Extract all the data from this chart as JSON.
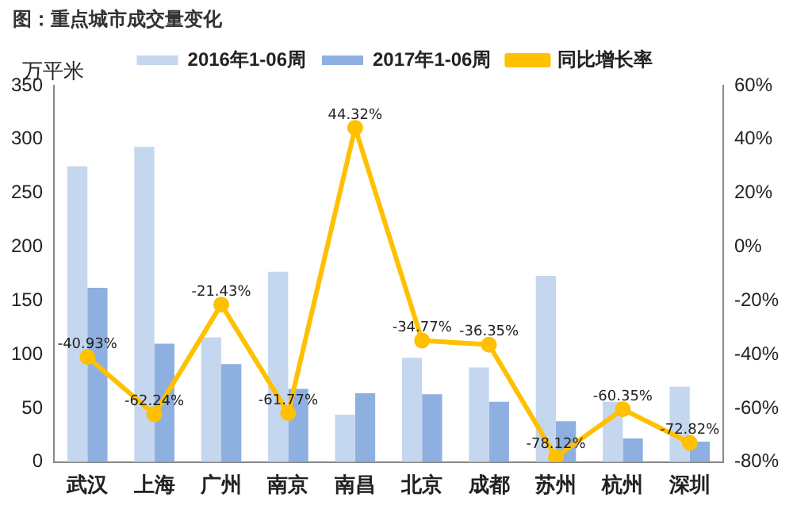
{
  "chart_data": {
    "type": "bar",
    "title": "图：重点城市成交量变化",
    "ylabel": "万平米",
    "categories": [
      "武汉",
      "上海",
      "广州",
      "南京",
      "南昌",
      "北京",
      "成都",
      "苏州",
      "杭州",
      "深圳"
    ],
    "series": [
      {
        "name": "2016年1-06周",
        "color": "#c5d6ef",
        "values": [
          275,
          293,
          116,
          177,
          44,
          97,
          88,
          173,
          56,
          70
        ]
      },
      {
        "name": "2017年1-06周",
        "color": "#8eb0e0",
        "values": [
          162,
          110,
          91,
          68,
          64,
          63,
          56,
          38,
          22,
          19
        ]
      },
      {
        "name": "同比增长率",
        "type": "line",
        "axis": "y2",
        "color": "#ffc000",
        "marker": "circle",
        "values": [
          -40.93,
          -62.24,
          -21.43,
          -61.77,
          44.32,
          -34.77,
          -36.35,
          -78.12,
          -60.35,
          -72.82
        ],
        "value_labels": [
          "-40.93%",
          "-62.24%",
          "-21.43%",
          "-61.77%",
          "44.32%",
          "-34.77%",
          "-36.35%",
          "-78.12%",
          "-60.35%",
          "-72.82%"
        ]
      }
    ],
    "ylim": [
      0,
      350
    ],
    "yticks": [
      0,
      50,
      100,
      150,
      200,
      250,
      300,
      350
    ],
    "y2lim": [
      -80,
      60
    ],
    "y2ticks": [
      {
        "value": -80,
        "label": "-80%"
      },
      {
        "value": -60,
        "label": "-60%"
      },
      {
        "value": -40,
        "label": "-40%"
      },
      {
        "value": -20,
        "label": "-20%"
      },
      {
        "value": 0,
        "label": "0%"
      },
      {
        "value": 20,
        "label": "20%"
      },
      {
        "value": 40,
        "label": "40%"
      },
      {
        "value": 60,
        "label": "60%"
      }
    ],
    "grid": false,
    "legend": "top"
  }
}
